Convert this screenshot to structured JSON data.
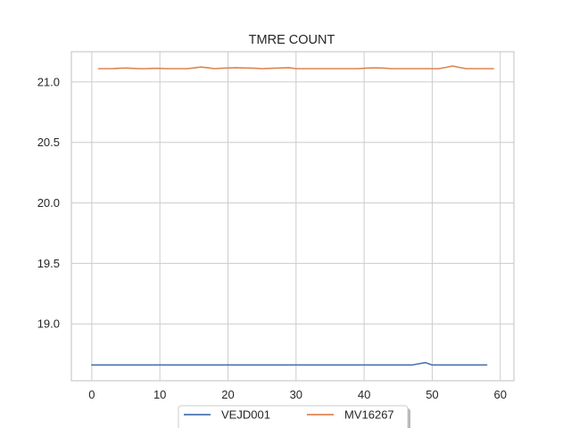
{
  "chart_data": {
    "type": "line",
    "title": "TMRE COUNT",
    "xlabel": "",
    "ylabel": "",
    "xlim": [
      -3,
      62
    ],
    "ylim": [
      18.53,
      21.25
    ],
    "xticks": [
      0,
      10,
      20,
      30,
      40,
      50,
      60
    ],
    "xtick_labels": [
      "0",
      "10",
      "20",
      "30",
      "40",
      "50",
      "60"
    ],
    "yticks": [
      19.0,
      19.5,
      20.0,
      20.5,
      21.0
    ],
    "ytick_labels": [
      "19.0",
      "19.5",
      "20.0",
      "20.5",
      "21.0"
    ],
    "grid": true,
    "legend_position": "bottom-center",
    "series": [
      {
        "name": "VEJD001",
        "color": "#4c72b0",
        "x": [
          0,
          1,
          2,
          3,
          4,
          5,
          6,
          7,
          8,
          9,
          10,
          11,
          12,
          13,
          14,
          15,
          16,
          17,
          18,
          19,
          20,
          21,
          22,
          23,
          24,
          25,
          26,
          27,
          28,
          29,
          30,
          31,
          32,
          33,
          34,
          35,
          36,
          37,
          38,
          39,
          40,
          41,
          42,
          43,
          44,
          45,
          46,
          47,
          48,
          49,
          50,
          51,
          52,
          53,
          54,
          55,
          56,
          57,
          58
        ],
        "y": [
          18.66,
          18.66,
          18.66,
          18.66,
          18.66,
          18.66,
          18.66,
          18.66,
          18.66,
          18.66,
          18.66,
          18.66,
          18.66,
          18.66,
          18.66,
          18.66,
          18.66,
          18.66,
          18.66,
          18.66,
          18.66,
          18.66,
          18.66,
          18.66,
          18.66,
          18.66,
          18.66,
          18.66,
          18.66,
          18.66,
          18.66,
          18.66,
          18.66,
          18.66,
          18.66,
          18.66,
          18.66,
          18.66,
          18.66,
          18.66,
          18.66,
          18.66,
          18.66,
          18.66,
          18.66,
          18.66,
          18.66,
          18.66,
          18.67,
          18.68,
          18.66,
          18.66,
          18.66,
          18.66,
          18.66,
          18.66,
          18.66,
          18.66,
          18.66
        ]
      },
      {
        "name": "MV16267",
        "color": "#dd8452",
        "x": [
          1,
          2,
          3,
          4,
          5,
          6,
          7,
          8,
          9,
          10,
          11,
          12,
          13,
          14,
          15,
          16,
          17,
          18,
          19,
          20,
          21,
          22,
          23,
          24,
          25,
          26,
          27,
          28,
          29,
          30,
          31,
          32,
          33,
          34,
          35,
          36,
          37,
          38,
          39,
          40,
          41,
          42,
          43,
          44,
          45,
          46,
          47,
          48,
          49,
          50,
          51,
          52,
          53,
          54,
          55,
          56,
          57,
          58,
          59
        ],
        "y": [
          21.11,
          21.11,
          21.11,
          21.113,
          21.115,
          21.112,
          21.11,
          21.11,
          21.112,
          21.112,
          21.11,
          21.11,
          21.11,
          21.11,
          21.116,
          21.123,
          21.118,
          21.11,
          21.113,
          21.115,
          21.118,
          21.116,
          21.115,
          21.113,
          21.11,
          21.112,
          21.114,
          21.116,
          21.118,
          21.11,
          21.11,
          21.11,
          21.11,
          21.11,
          21.11,
          21.11,
          21.11,
          21.11,
          21.11,
          21.113,
          21.116,
          21.116,
          21.114,
          21.11,
          21.11,
          21.11,
          21.11,
          21.11,
          21.11,
          21.11,
          21.11,
          21.12,
          21.132,
          21.12,
          21.11,
          21.11,
          21.11,
          21.11,
          21.11
        ]
      }
    ]
  }
}
